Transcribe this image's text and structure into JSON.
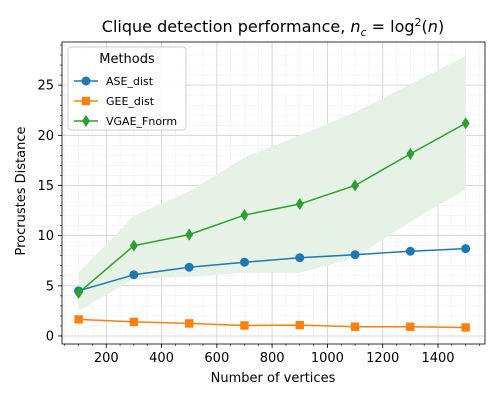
{
  "chart_data": {
    "type": "line",
    "title": {
      "prefix": "Clique detection performance,",
      "formula": "n_c = log²(n)"
    },
    "xlabel": "Number of vertices",
    "ylabel": "Procrustes Distance",
    "xlim": [
      40,
      1570
    ],
    "ylim": [
      -0.8,
      29.3
    ],
    "xticks": [
      200,
      400,
      600,
      800,
      1000,
      1200,
      1400
    ],
    "yticks": [
      0,
      5,
      10,
      15,
      20,
      25
    ],
    "grid": true,
    "legend": {
      "title": "Methods",
      "placement": "top-left"
    },
    "x": [
      100,
      300,
      500,
      700,
      900,
      1100,
      1300,
      1500
    ],
    "series": [
      {
        "name": "ASE_dist",
        "color": "#1f77b4",
        "marker": "circle",
        "values": [
          4.5,
          6.1,
          6.85,
          7.35,
          7.8,
          8.1,
          8.45,
          8.7
        ]
      },
      {
        "name": "GEE_dist",
        "color": "#ff7f0e",
        "marker": "square",
        "values": [
          1.65,
          1.4,
          1.25,
          1.05,
          1.08,
          0.92,
          0.92,
          0.85
        ]
      },
      {
        "name": "VGAE_Fnorm",
        "color": "#2ca02c",
        "marker": "diamond",
        "values": [
          4.3,
          9.0,
          10.1,
          12.05,
          13.15,
          15.0,
          18.15,
          21.2
        ],
        "band_lower": [
          2.5,
          5.7,
          5.9,
          6.3,
          6.3,
          7.8,
          11.4,
          14.6
        ],
        "band_upper": [
          6.3,
          12.0,
          14.4,
          17.8,
          20.0,
          22.3,
          25.1,
          27.9
        ],
        "band_color": "#e6f2e6"
      }
    ]
  }
}
